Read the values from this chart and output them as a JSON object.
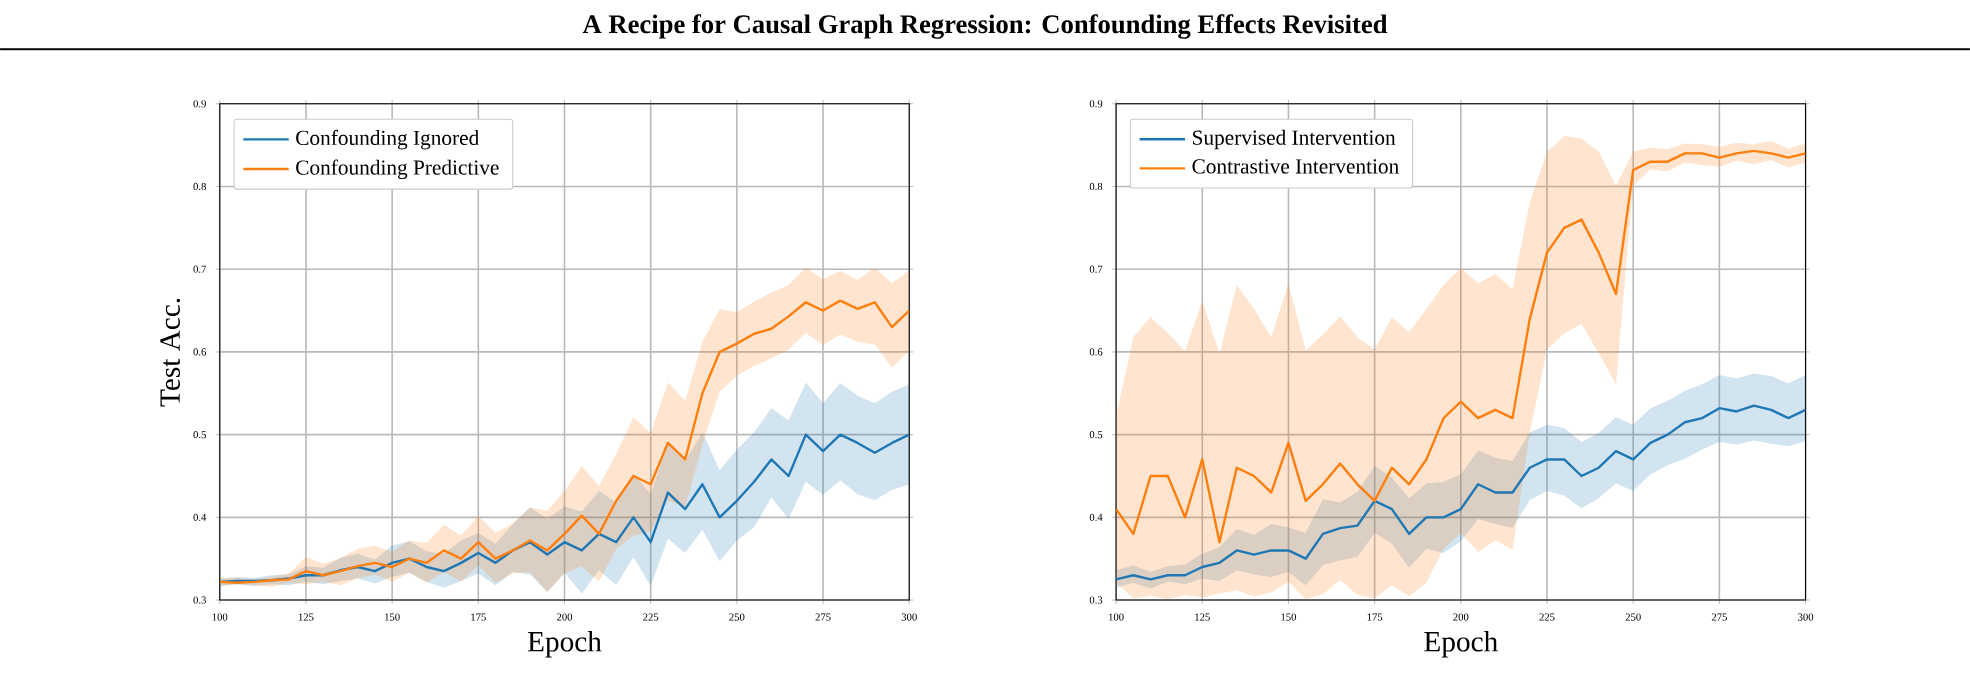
{
  "chart_data": [
    {
      "type": "line",
      "title": "A Recipe for Causal Graph Regression: Confounding Effects Revisited",
      "xlabel": "Epoch",
      "ylabel": "Test Acc.",
      "xlim": [
        100,
        300
      ],
      "ylim": [
        0.3,
        0.9
      ],
      "xticks": [
        100,
        125,
        150,
        175,
        200,
        225,
        250,
        275,
        300
      ],
      "yticks": [
        0.3,
        0.4,
        0.5,
        0.6,
        0.7,
        0.8,
        0.9
      ],
      "grid": true,
      "legend": "top left",
      "line_style": "solid",
      "marker": "none",
      "series": [
        {
          "name": "Confounding Ignored",
          "color": "#1f77b4",
          "x": [
            100,
            105,
            110,
            115,
            120,
            125,
            130,
            135,
            140,
            145,
            150,
            155,
            160,
            165,
            170,
            175,
            180,
            185,
            190,
            195,
            200,
            205,
            210,
            215,
            220,
            225,
            230,
            235,
            240,
            245,
            250,
            255,
            260,
            265,
            270,
            275,
            280,
            285,
            290,
            295,
            300
          ],
          "values": [
            0.322,
            0.323,
            0.323,
            0.324,
            0.326,
            0.33,
            0.33,
            0.336,
            0.34,
            0.335,
            0.345,
            0.35,
            0.34,
            0.335,
            0.345,
            0.357,
            0.345,
            0.36,
            0.37,
            0.355,
            0.37,
            0.36,
            0.38,
            0.37,
            0.4,
            0.37,
            0.43,
            0.41,
            0.44,
            0.4,
            0.42,
            0.443,
            0.47,
            0.45,
            0.5,
            0.48,
            0.5,
            0.49,
            0.478,
            0.49,
            0.5
          ],
          "lower": [
            0.317,
            0.319,
            0.317,
            0.319,
            0.318,
            0.322,
            0.319,
            0.323,
            0.326,
            0.32,
            0.328,
            0.333,
            0.322,
            0.315,
            0.323,
            0.332,
            0.318,
            0.334,
            0.331,
            0.31,
            0.333,
            0.308,
            0.336,
            0.318,
            0.352,
            0.317,
            0.374,
            0.357,
            0.385,
            0.347,
            0.372,
            0.388,
            0.424,
            0.398,
            0.443,
            0.427,
            0.445,
            0.428,
            0.421,
            0.433,
            0.44
          ],
          "upper": [
            0.326,
            0.328,
            0.327,
            0.33,
            0.331,
            0.341,
            0.339,
            0.351,
            0.356,
            0.349,
            0.366,
            0.371,
            0.359,
            0.356,
            0.372,
            0.381,
            0.368,
            0.392,
            0.412,
            0.398,
            0.413,
            0.407,
            0.432,
            0.418,
            0.453,
            0.428,
            0.492,
            0.468,
            0.503,
            0.457,
            0.482,
            0.503,
            0.532,
            0.517,
            0.563,
            0.538,
            0.562,
            0.547,
            0.538,
            0.552,
            0.561
          ]
        },
        {
          "name": "Confounding Predictive",
          "color": "#ff7f0e",
          "x": [
            100,
            105,
            110,
            115,
            120,
            125,
            130,
            135,
            140,
            145,
            150,
            155,
            160,
            165,
            170,
            175,
            180,
            185,
            190,
            195,
            200,
            205,
            210,
            215,
            220,
            225,
            230,
            235,
            240,
            245,
            250,
            255,
            260,
            265,
            270,
            275,
            280,
            285,
            290,
            295,
            300
          ],
          "values": [
            0.322,
            0.321,
            0.322,
            0.324,
            0.325,
            0.335,
            0.33,
            0.335,
            0.341,
            0.345,
            0.34,
            0.35,
            0.345,
            0.36,
            0.35,
            0.37,
            0.35,
            0.36,
            0.372,
            0.36,
            0.38,
            0.402,
            0.38,
            0.42,
            0.45,
            0.44,
            0.49,
            0.47,
            0.55,
            0.6,
            0.61,
            0.622,
            0.628,
            0.643,
            0.66,
            0.65,
            0.662,
            0.652,
            0.66,
            0.63,
            0.65
          ],
          "lower": [
            0.317,
            0.319,
            0.318,
            0.316,
            0.321,
            0.319,
            0.322,
            0.318,
            0.326,
            0.331,
            0.322,
            0.333,
            0.321,
            0.334,
            0.322,
            0.342,
            0.321,
            0.332,
            0.334,
            0.309,
            0.332,
            0.341,
            0.322,
            0.362,
            0.378,
            0.383,
            0.421,
            0.412,
            0.488,
            0.552,
            0.571,
            0.583,
            0.592,
            0.603,
            0.623,
            0.608,
            0.621,
            0.612,
            0.609,
            0.581,
            0.602
          ],
          "upper": [
            0.326,
            0.327,
            0.325,
            0.328,
            0.332,
            0.352,
            0.344,
            0.351,
            0.362,
            0.366,
            0.358,
            0.372,
            0.369,
            0.391,
            0.378,
            0.402,
            0.381,
            0.393,
            0.412,
            0.408,
            0.432,
            0.462,
            0.438,
            0.477,
            0.521,
            0.502,
            0.563,
            0.541,
            0.612,
            0.652,
            0.648,
            0.661,
            0.672,
            0.681,
            0.702,
            0.688,
            0.698,
            0.687,
            0.702,
            0.683,
            0.699
          ]
        }
      ]
    },
    {
      "type": "line",
      "xlabel": "Epoch",
      "xlim": [
        100,
        300
      ],
      "ylim": [
        0.3,
        0.9
      ],
      "xticks": [
        100,
        125,
        150,
        175,
        200,
        225,
        250,
        275,
        300
      ],
      "yticks": [
        0.3,
        0.4,
        0.5,
        0.6,
        0.7,
        0.8,
        0.9
      ],
      "grid": true,
      "legend": "top left",
      "line_style": "solid",
      "marker": "none",
      "series": [
        {
          "name": "Supervised Intervention",
          "color": "#1f77b4",
          "x": [
            100,
            105,
            110,
            115,
            120,
            125,
            130,
            135,
            140,
            145,
            150,
            155,
            160,
            165,
            170,
            175,
            180,
            185,
            190,
            195,
            200,
            205,
            210,
            215,
            220,
            225,
            230,
            235,
            240,
            245,
            250,
            255,
            260,
            265,
            270,
            275,
            280,
            285,
            290,
            295,
            300
          ],
          "values": [
            0.325,
            0.33,
            0.325,
            0.33,
            0.33,
            0.34,
            0.345,
            0.36,
            0.355,
            0.36,
            0.36,
            0.35,
            0.38,
            0.387,
            0.39,
            0.42,
            0.41,
            0.38,
            0.4,
            0.4,
            0.41,
            0.44,
            0.43,
            0.43,
            0.46,
            0.47,
            0.47,
            0.45,
            0.46,
            0.48,
            0.47,
            0.49,
            0.5,
            0.515,
            0.52,
            0.532,
            0.528,
            0.535,
            0.53,
            0.52,
            0.53
          ],
          "lower": [
            0.315,
            0.321,
            0.314,
            0.322,
            0.319,
            0.326,
            0.323,
            0.336,
            0.331,
            0.328,
            0.334,
            0.318,
            0.342,
            0.348,
            0.352,
            0.381,
            0.368,
            0.339,
            0.362,
            0.357,
            0.371,
            0.398,
            0.392,
            0.387,
            0.421,
            0.432,
            0.426,
            0.411,
            0.423,
            0.441,
            0.432,
            0.452,
            0.463,
            0.471,
            0.482,
            0.491,
            0.488,
            0.493,
            0.489,
            0.486,
            0.492
          ],
          "upper": [
            0.336,
            0.342,
            0.334,
            0.341,
            0.343,
            0.356,
            0.364,
            0.386,
            0.379,
            0.392,
            0.388,
            0.381,
            0.422,
            0.418,
            0.431,
            0.462,
            0.448,
            0.423,
            0.441,
            0.443,
            0.452,
            0.481,
            0.472,
            0.468,
            0.503,
            0.512,
            0.508,
            0.491,
            0.502,
            0.521,
            0.512,
            0.532,
            0.541,
            0.553,
            0.561,
            0.572,
            0.568,
            0.574,
            0.571,
            0.562,
            0.572
          ]
        },
        {
          "name": "Contrastive Intervention",
          "color": "#ff7f0e",
          "x": [
            100,
            105,
            110,
            115,
            120,
            125,
            130,
            135,
            140,
            145,
            150,
            155,
            160,
            165,
            170,
            175,
            180,
            185,
            190,
            195,
            200,
            205,
            210,
            215,
            220,
            225,
            230,
            235,
            240,
            245,
            250,
            255,
            260,
            265,
            270,
            275,
            280,
            285,
            290,
            295,
            300
          ],
          "values": [
            0.41,
            0.38,
            0.45,
            0.45,
            0.4,
            0.47,
            0.37,
            0.46,
            0.45,
            0.43,
            0.49,
            0.42,
            0.44,
            0.465,
            0.44,
            0.42,
            0.46,
            0.44,
            0.47,
            0.52,
            0.54,
            0.52,
            0.53,
            0.52,
            0.64,
            0.72,
            0.75,
            0.76,
            0.72,
            0.67,
            0.82,
            0.83,
            0.83,
            0.84,
            0.84,
            0.835,
            0.84,
            0.843,
            0.84,
            0.835,
            0.84
          ],
          "lower": [
            0.321,
            0.302,
            0.305,
            0.301,
            0.306,
            0.303,
            0.308,
            0.312,
            0.304,
            0.309,
            0.322,
            0.301,
            0.307,
            0.324,
            0.306,
            0.302,
            0.318,
            0.305,
            0.321,
            0.362,
            0.381,
            0.358,
            0.372,
            0.361,
            0.502,
            0.603,
            0.622,
            0.634,
            0.598,
            0.561,
            0.801,
            0.821,
            0.818,
            0.829,
            0.826,
            0.824,
            0.831,
            0.827,
            0.832,
            0.823,
            0.829
          ],
          "upper": [
            0.522,
            0.618,
            0.642,
            0.623,
            0.601,
            0.662,
            0.598,
            0.681,
            0.652,
            0.618,
            0.683,
            0.602,
            0.621,
            0.643,
            0.618,
            0.603,
            0.642,
            0.624,
            0.652,
            0.681,
            0.702,
            0.683,
            0.694,
            0.676,
            0.781,
            0.842,
            0.861,
            0.858,
            0.842,
            0.801,
            0.842,
            0.847,
            0.845,
            0.852,
            0.851,
            0.848,
            0.853,
            0.851,
            0.855,
            0.846,
            0.852
          ]
        }
      ]
    }
  ]
}
